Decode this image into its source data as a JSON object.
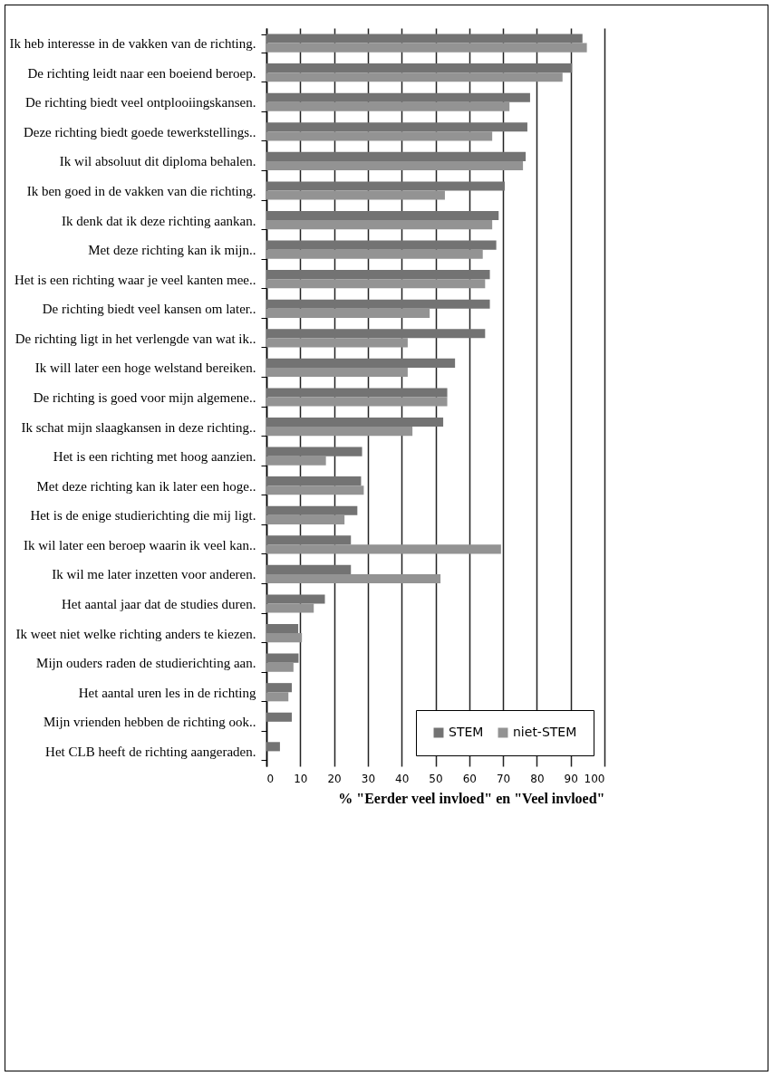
{
  "chart_data": {
    "type": "bar",
    "orientation": "horizontal",
    "categories": [
      "Ik heb interesse in de vakken van de richting.",
      "De richting leidt naar een boeiend beroep.",
      "De richting biedt veel ontplooiingskansen.",
      "Deze richting biedt goede tewerkstellings..",
      "Ik wil absoluut dit diploma behalen.",
      "Ik ben goed in de vakken van die richting.",
      "Ik denk dat ik deze richting aankan.",
      "Met deze richting kan ik mijn..",
      "Het is een richting waar je veel kanten mee..",
      "De richting biedt veel kansen om later..",
      "De richting ligt in het verlengde van wat ik..",
      "Ik will later een hoge welstand bereiken.",
      "De richting is goed voor mijn algemene..",
      "Ik schat mijn slaagkansen in deze richting..",
      "Het is een richting met hoog aanzien.",
      "Met deze richting kan ik later een hoge..",
      "Het is de enige studierichting die mij ligt.",
      "Ik wil later een beroep waarin ik veel kan..",
      "Ik wil me later inzetten voor anderen.",
      "Het aantal jaar dat de studies duren.",
      "Ik weet niet welke richting anders te kiezen.",
      "Mijn ouders raden de studierichting aan.",
      "Het aantal uren les in de richting",
      "Mijn vrienden hebben de richting ook..",
      "Het CLB heeft de richting aangeraden."
    ],
    "series": [
      {
        "name": "STEM",
        "color": "#737373",
        "values": [
          93.5,
          90.4,
          78,
          77.2,
          76.7,
          70.5,
          68.7,
          68,
          66.1,
          66.1,
          64.7,
          55.8,
          53.5,
          52.3,
          28.3,
          28,
          26.9,
          25,
          25,
          17.3,
          9.4,
          9.5,
          7.5,
          7.5,
          4
        ]
      },
      {
        "name": "niet-STEM",
        "color": "#939393",
        "values": [
          94.8,
          87.6,
          71.9,
          66.8,
          75.9,
          52.8,
          66.8,
          64,
          64.7,
          48.3,
          41.8,
          41.8,
          53.5,
          43.2,
          17.6,
          28.8,
          23.1,
          69.4,
          51.5,
          14,
          10.5,
          8,
          6.5,
          null,
          null
        ]
      }
    ],
    "xlim": [
      0,
      100
    ],
    "xticks": [
      0,
      10,
      20,
      30,
      40,
      50,
      60,
      70,
      80,
      90,
      100
    ],
    "xlabel": "% \"Eerder veel invloed\" en \"Veel invloed\"",
    "grid": "x",
    "legend": "bottom right"
  }
}
